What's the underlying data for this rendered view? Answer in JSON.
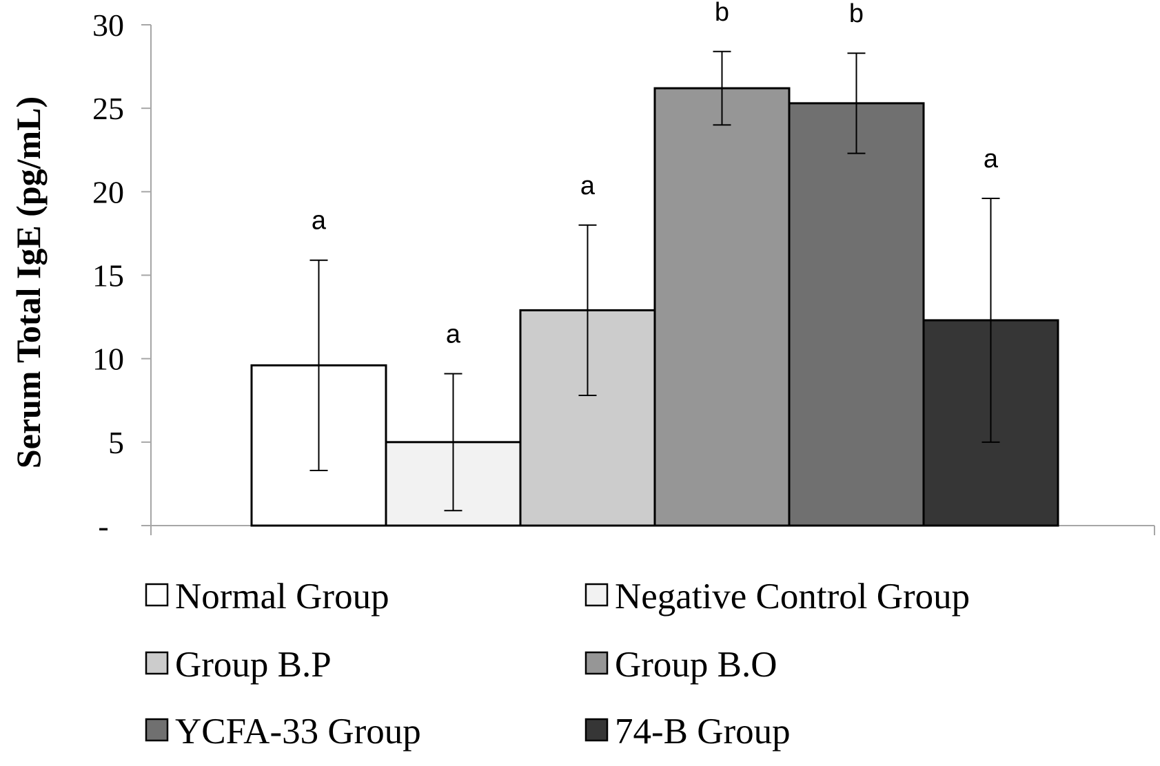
{
  "chart_data": {
    "type": "bar",
    "title": "",
    "xlabel": "",
    "ylabel": "Serum Total IgE (pg/mL)",
    "ylim": [
      0,
      30
    ],
    "yticks": [
      {
        "value": 0,
        "label": "-"
      },
      {
        "value": 5,
        "label": "5"
      },
      {
        "value": 10,
        "label": "10"
      },
      {
        "value": 15,
        "label": "15"
      },
      {
        "value": 20,
        "label": "20"
      },
      {
        "value": 25,
        "label": "25"
      },
      {
        "value": 30,
        "label": "30"
      }
    ],
    "grid": false,
    "legend_position": "bottom",
    "series": [
      {
        "name": "Normal Group",
        "value": 9.6,
        "error": 6.3,
        "significance": "a",
        "color": "#ffffff"
      },
      {
        "name": "Negative Control Group",
        "value": 5.0,
        "error": 4.1,
        "significance": "a",
        "color": "#f2f2f2"
      },
      {
        "name": "Group B.P",
        "value": 12.9,
        "error": 5.1,
        "significance": "a",
        "color": "#cccccc"
      },
      {
        "name": "Group B.O",
        "value": 26.2,
        "error": 2.2,
        "significance": "b",
        "color": "#969696"
      },
      {
        "name": "YCFA-33 Group",
        "value": 25.3,
        "error": 3.0,
        "significance": "b",
        "color": "#707070"
      },
      {
        "name": "74-B Group",
        "value": 12.3,
        "error": 7.3,
        "significance": "a",
        "color": "#363636"
      }
    ]
  }
}
